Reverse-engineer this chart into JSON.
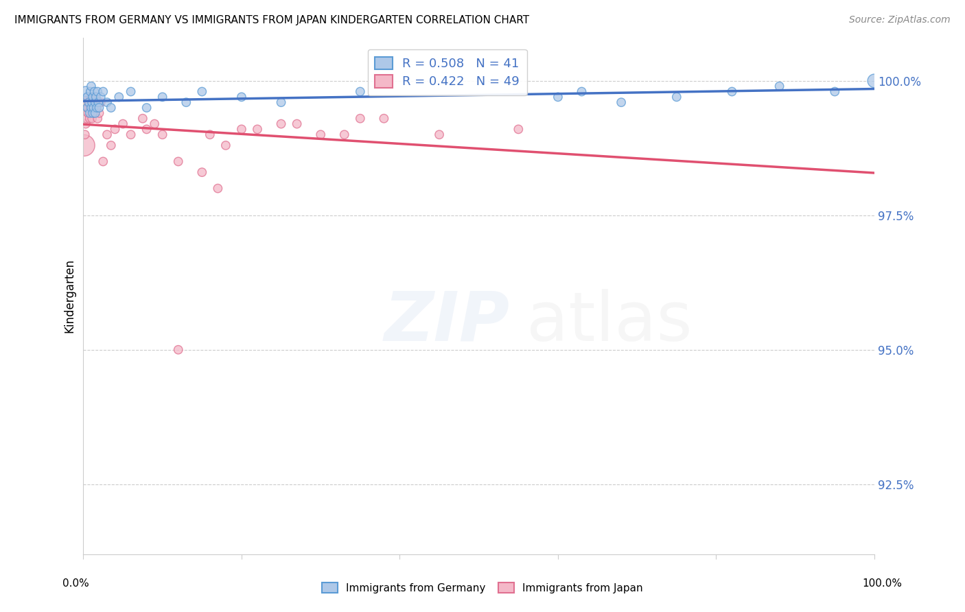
{
  "title": "IMMIGRANTS FROM GERMANY VS IMMIGRANTS FROM JAPAN KINDERGARTEN CORRELATION CHART",
  "source": "Source: ZipAtlas.com",
  "ylabel": "Kindergarten",
  "yticks": [
    92.5,
    95.0,
    97.5,
    100.0
  ],
  "ytick_labels": [
    "92.5%",
    "95.0%",
    "97.5%",
    "100.0%"
  ],
  "xmin": 0.0,
  "xmax": 100.0,
  "ymin": 91.2,
  "ymax": 100.8,
  "legend_germany": "Immigrants from Germany",
  "legend_japan": "Immigrants from Japan",
  "R_germany": 0.508,
  "N_germany": 41,
  "R_japan": 0.422,
  "N_japan": 49,
  "color_germany": "#aec8e8",
  "color_japan": "#f4b8c8",
  "color_germany_edge": "#5b9bd5",
  "color_japan_edge": "#e07090",
  "color_germany_line": "#4472c4",
  "color_japan_line": "#e05070",
  "germany_x": [
    0.3,
    0.5,
    0.5,
    0.7,
    0.8,
    0.9,
    1.0,
    1.0,
    1.1,
    1.2,
    1.2,
    1.3,
    1.4,
    1.5,
    1.5,
    1.6,
    1.7,
    1.8,
    1.9,
    2.0,
    2.2,
    2.5,
    3.0,
    3.5,
    4.5,
    6.0,
    8.0,
    10.0,
    13.0,
    15.0,
    20.0,
    25.0,
    35.0,
    60.0,
    63.0,
    68.0,
    75.0,
    82.0,
    88.0,
    95.0,
    100.0
  ],
  "germany_y": [
    99.8,
    99.5,
    99.7,
    99.6,
    99.4,
    99.8,
    99.5,
    99.9,
    99.6,
    99.4,
    99.7,
    99.5,
    99.8,
    99.6,
    99.4,
    99.7,
    99.5,
    99.8,
    99.6,
    99.5,
    99.7,
    99.8,
    99.6,
    99.5,
    99.7,
    99.8,
    99.5,
    99.7,
    99.6,
    99.8,
    99.7,
    99.6,
    99.8,
    99.7,
    99.8,
    99.6,
    99.7,
    99.8,
    99.9,
    99.8,
    100.0
  ],
  "germany_size": [
    120,
    80,
    80,
    80,
    80,
    80,
    80,
    80,
    80,
    80,
    80,
    80,
    80,
    80,
    80,
    80,
    80,
    80,
    80,
    80,
    80,
    80,
    80,
    80,
    80,
    80,
    80,
    80,
    80,
    80,
    80,
    80,
    80,
    80,
    80,
    80,
    80,
    80,
    80,
    80,
    200
  ],
  "japan_x": [
    0.1,
    0.2,
    0.3,
    0.4,
    0.5,
    0.5,
    0.6,
    0.6,
    0.7,
    0.8,
    0.8,
    0.9,
    1.0,
    1.0,
    1.1,
    1.2,
    1.3,
    1.4,
    1.5,
    1.6,
    1.8,
    2.0,
    2.2,
    2.5,
    3.0,
    3.5,
    4.0,
    5.0,
    6.0,
    7.5,
    8.0,
    9.0,
    10.0,
    12.0,
    15.0,
    17.0,
    20.0,
    25.0,
    30.0,
    35.0,
    12.0,
    16.0,
    18.0,
    22.0,
    27.0,
    33.0,
    38.0,
    45.0,
    55.0
  ],
  "japan_y": [
    98.8,
    99.0,
    99.2,
    99.3,
    99.5,
    99.6,
    99.4,
    99.7,
    99.5,
    99.3,
    99.6,
    99.5,
    99.7,
    99.4,
    99.3,
    99.5,
    99.6,
    99.4,
    99.7,
    99.5,
    99.3,
    99.4,
    99.6,
    98.5,
    99.0,
    98.8,
    99.1,
    99.2,
    99.0,
    99.3,
    99.1,
    99.2,
    99.0,
    95.0,
    98.3,
    98.0,
    99.1,
    99.2,
    99.0,
    99.3,
    98.5,
    99.0,
    98.8,
    99.1,
    99.2,
    99.0,
    99.3,
    99.0,
    99.1
  ],
  "japan_size": [
    500,
    80,
    80,
    80,
    80,
    80,
    80,
    80,
    80,
    80,
    80,
    80,
    80,
    80,
    80,
    80,
    80,
    80,
    80,
    80,
    80,
    80,
    80,
    80,
    80,
    80,
    80,
    80,
    80,
    80,
    80,
    80,
    80,
    80,
    80,
    80,
    80,
    80,
    80,
    80,
    80,
    80,
    80,
    80,
    80,
    80,
    80,
    80,
    80
  ],
  "xtick_positions": [
    0,
    20,
    40,
    60,
    80,
    100
  ]
}
